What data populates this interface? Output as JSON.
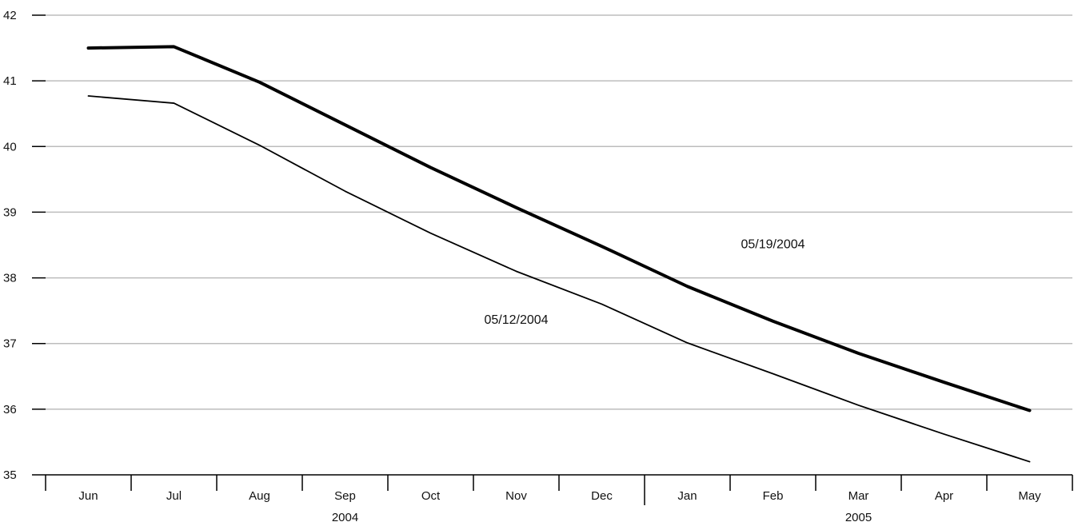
{
  "chart_data": {
    "type": "line",
    "categories": [
      "Jun",
      "Jul",
      "Aug",
      "Sep",
      "Oct",
      "Nov",
      "Dec",
      "Jan",
      "Feb",
      "Mar",
      "Apr",
      "May"
    ],
    "year_labels": [
      {
        "label": "2004",
        "category": "Sep"
      },
      {
        "label": "2005",
        "category": "Mar"
      }
    ],
    "yticks": [
      35,
      36,
      37,
      38,
      39,
      40,
      41,
      42
    ],
    "ylim": [
      35,
      42
    ],
    "grid": true,
    "series": [
      {
        "name": "05/19/2004",
        "label_anchor": {
          "x": "Feb",
          "y": 38.45
        },
        "values": [
          41.5,
          41.52,
          40.98,
          40.33,
          39.68,
          39.07,
          38.48,
          37.87,
          37.34,
          36.85,
          36.41,
          35.98
        ],
        "color": "#000000",
        "weight": "heavy"
      },
      {
        "name": "05/12/2004",
        "label_anchor": {
          "x": "Nov",
          "y": 37.3
        },
        "values": [
          40.77,
          40.66,
          40.02,
          39.32,
          38.68,
          38.1,
          37.6,
          37.01,
          36.54,
          36.06,
          35.62,
          35.2
        ],
        "color": "#000000",
        "weight": "light"
      }
    ],
    "title": "",
    "xlabel": "",
    "ylabel": ""
  }
}
